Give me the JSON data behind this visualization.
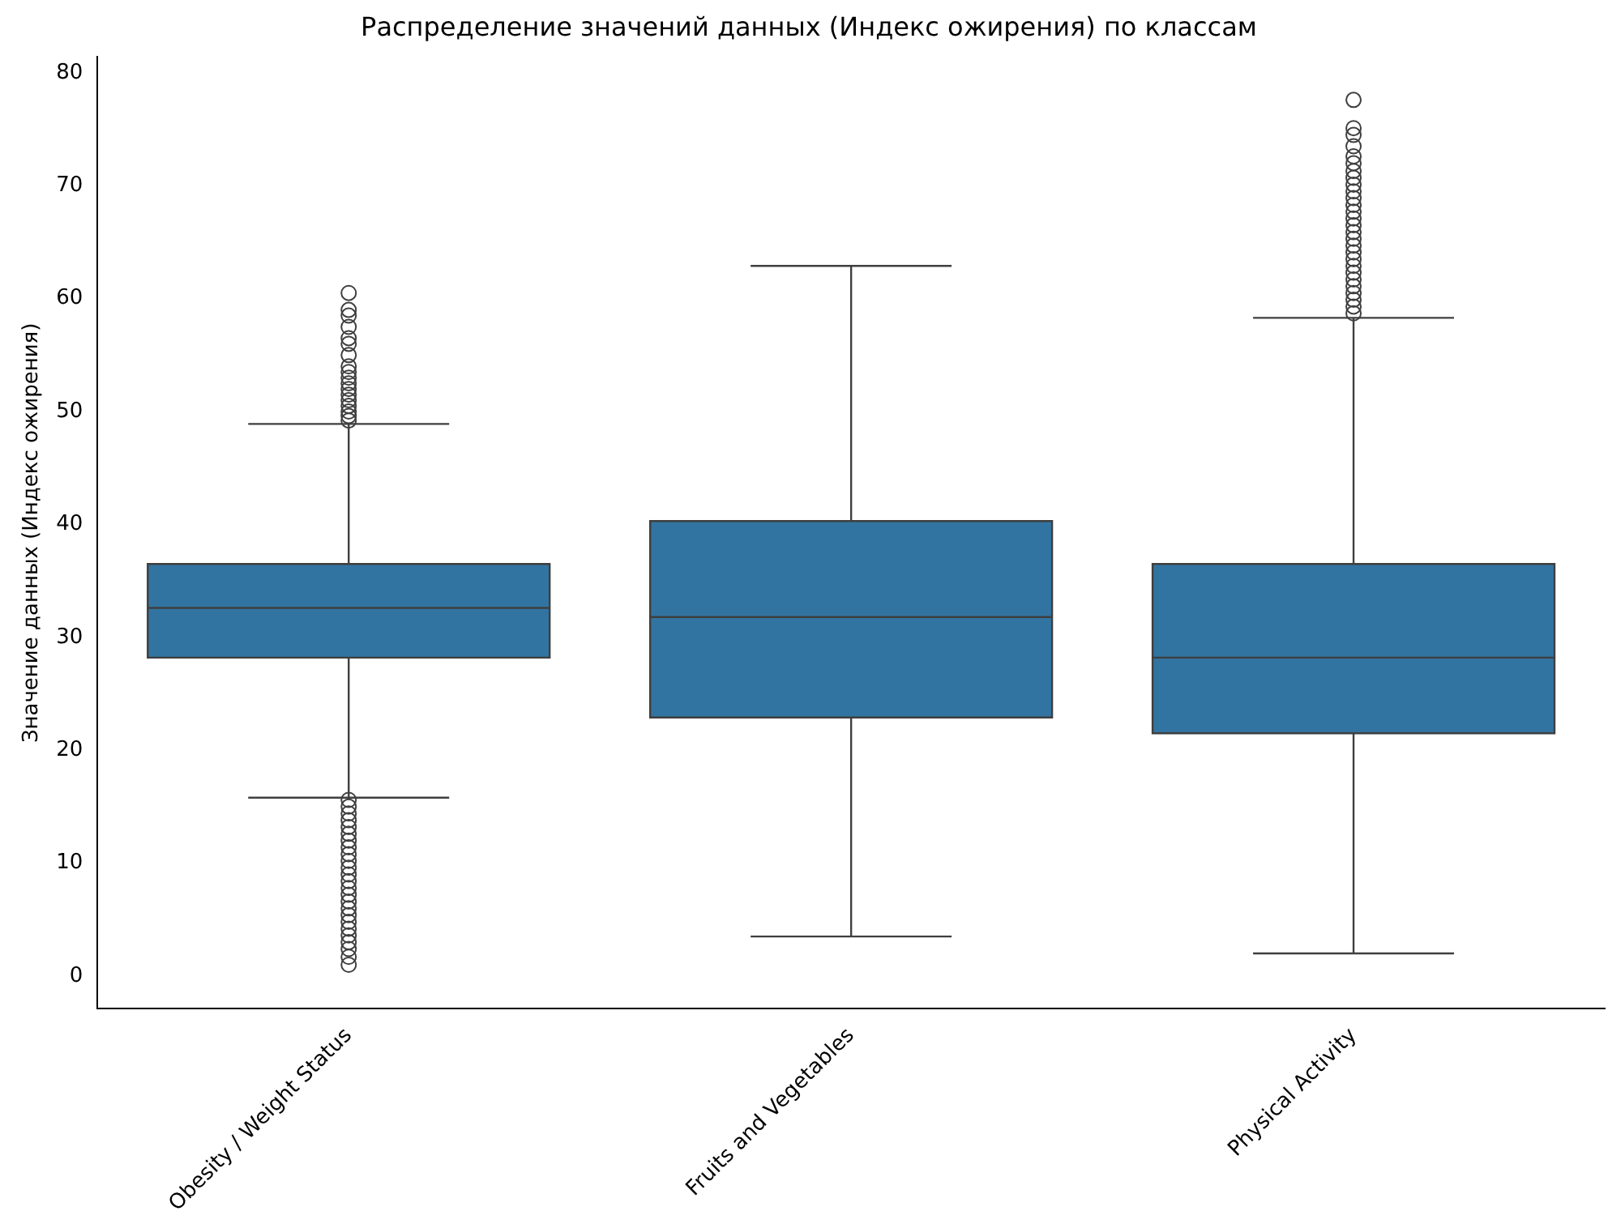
{
  "chart_data": {
    "type": "box",
    "title": "Распределение значений данных (Индекс ожирения) по классам",
    "ylabel": "Значение данных (Индекс ожирения)",
    "categories": [
      "Obesity / Weight Status",
      "Fruits and Vegetables",
      "Physical Activity"
    ],
    "color": "#3274a1",
    "grid": false,
    "legend": false,
    "marker": "circle",
    "ylim": [
      -2.9,
      81.4
    ],
    "yticks": [
      0,
      10,
      20,
      30,
      40,
      50,
      60,
      70,
      80
    ],
    "boxes": [
      {
        "low": 15.8,
        "q1": 28.2,
        "median": 32.6,
        "q3": 36.5,
        "high": 48.9,
        "outliers": [
          1.0,
          1.7,
          2.4,
          3.0,
          3.6,
          4.2,
          4.8,
          5.4,
          6.0,
          6.6,
          7.2,
          7.8,
          8.4,
          9.0,
          9.6,
          10.2,
          10.8,
          11.4,
          12.0,
          12.6,
          13.2,
          13.8,
          14.4,
          15.0,
          15.6,
          49.2,
          49.6,
          50.0,
          50.5,
          51.0,
          51.5,
          52.0,
          52.5,
          53.0,
          53.5,
          54.0,
          55.0,
          56.0,
          56.5,
          57.5,
          58.5,
          59.0,
          60.5
        ]
      },
      {
        "low": 3.5,
        "q1": 22.9,
        "median": 31.8,
        "q3": 40.3,
        "high": 62.9
      },
      {
        "low": 2.0,
        "q1": 21.5,
        "median": 28.2,
        "q3": 36.5,
        "high": 58.3,
        "outliers": [
          58.7,
          59.3,
          59.9,
          60.5,
          61.1,
          61.7,
          62.3,
          62.9,
          63.5,
          64.1,
          64.7,
          65.3,
          65.9,
          66.5,
          67.1,
          67.7,
          68.3,
          68.9,
          69.5,
          70.1,
          70.7,
          71.3,
          72.0,
          72.6,
          73.5,
          74.5,
          75.1,
          77.6
        ]
      }
    ]
  }
}
